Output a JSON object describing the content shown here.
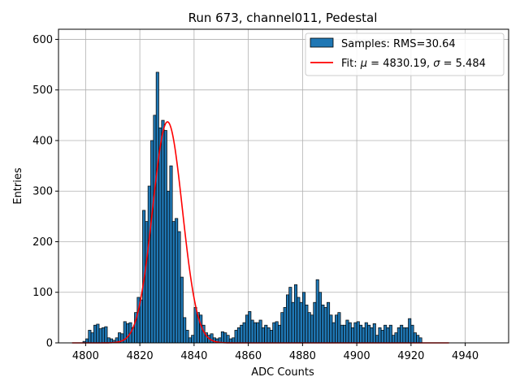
{
  "chart_data": {
    "type": "bar",
    "title": "Run 673, channel011, Pedestal",
    "xlabel": "ADC Counts",
    "ylabel": "Entries",
    "xlim": [
      4790,
      4956
    ],
    "ylim": [
      0,
      620
    ],
    "xticks": [
      4800,
      4820,
      4840,
      4860,
      4880,
      4900,
      4920,
      4940
    ],
    "yticks": [
      0,
      100,
      200,
      300,
      400,
      500,
      600
    ],
    "grid": true,
    "legend_position": "top-right",
    "bin_start": 4795,
    "bin_width": 1,
    "histogram_counts": [
      0,
      0,
      0,
      0,
      3,
      8,
      25,
      20,
      35,
      37,
      28,
      30,
      32,
      10,
      8,
      5,
      10,
      20,
      18,
      42,
      38,
      40,
      30,
      60,
      90,
      85,
      262,
      240,
      310,
      400,
      450,
      535,
      425,
      440,
      420,
      300,
      350,
      240,
      246,
      220,
      130,
      50,
      25,
      10,
      15,
      70,
      60,
      55,
      35,
      20,
      15,
      18,
      10,
      8,
      10,
      22,
      20,
      15,
      8,
      10,
      25,
      30,
      35,
      40,
      55,
      62,
      45,
      40,
      40,
      45,
      30,
      35,
      30,
      25,
      40,
      42,
      35,
      60,
      70,
      95,
      110,
      80,
      115,
      90,
      80,
      100,
      75,
      60,
      55,
      80,
      125,
      100,
      75,
      70,
      80,
      55,
      40,
      55,
      60,
      35,
      35,
      45,
      40,
      30,
      40,
      42,
      35,
      30,
      40,
      35,
      30,
      38,
      15,
      30,
      25,
      35,
      30,
      35,
      15,
      20,
      30,
      35,
      30,
      30,
      48,
      35,
      20,
      15,
      10,
      0
    ],
    "series": [
      {
        "name": "Samples: RMS=30.64",
        "type": "histogram",
        "color": "#1f77b4"
      },
      {
        "name": "Fit: μ = 4830.19, σ = 5.484",
        "type": "line",
        "color": "#ff0000",
        "mu": 4830.19,
        "sigma": 5.484,
        "amplitude": 437
      }
    ],
    "legend_labels": {
      "samples": "Samples: RMS=30.64",
      "fit_prefix": "Fit: ",
      "mu_symbol": "μ",
      "mu_text": " = 4830.19, ",
      "sigma_symbol": "σ",
      "sigma_text": " = 5.484"
    }
  }
}
